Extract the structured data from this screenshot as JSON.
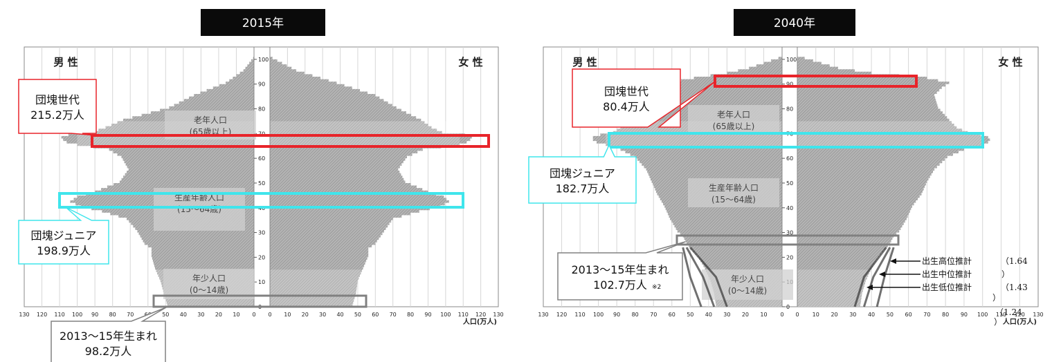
{
  "chart_data": [
    {
      "type": "population-pyramid",
      "title": "2015年",
      "left_label": "男 性",
      "right_label": "女 性",
      "x_ticks_left": [
        "130",
        "120",
        "110",
        "100",
        "90",
        "80",
        "70",
        "60",
        "50",
        "40",
        "30",
        "20",
        "10",
        "0"
      ],
      "x_ticks_right": [
        "0",
        "10",
        "20",
        "30",
        "40",
        "50",
        "60",
        "70",
        "80",
        "90",
        "100",
        "110",
        "120",
        "130"
      ],
      "age_ticks": [
        "0",
        "10",
        "20",
        "30",
        "40",
        "50",
        "60",
        "70",
        "80",
        "90",
        "100"
      ],
      "xlim": [
        0,
        130
      ],
      "ylim": [
        0,
        105
      ],
      "unit_label": "人口(万人)",
      "segments": [
        {
          "label": "老年人口",
          "sub": "(65歳以上)"
        },
        {
          "label": "生産年齢人口",
          "sub": "(15〜64歳)"
        },
        {
          "label": "年少人口",
          "sub": "(0〜14歳)"
        }
      ],
      "profile_ages": [
        0,
        5,
        10,
        15,
        20,
        23,
        25,
        30,
        35,
        38,
        40,
        42,
        44,
        46,
        50,
        55,
        60,
        63,
        65,
        66,
        67,
        68,
        69,
        70,
        72,
        75,
        80,
        85,
        90,
        95,
        100
      ],
      "male": [
        49,
        51,
        53,
        56,
        58,
        58,
        62,
        66,
        72,
        86,
        98,
        104,
        100,
        90,
        76,
        71,
        75,
        82,
        100,
        106,
        108,
        109,
        105,
        92,
        84,
        74,
        48,
        34,
        16,
        6,
        0.5
      ],
      "female": [
        47,
        49,
        50,
        53,
        56,
        56,
        60,
        65,
        70,
        85,
        97,
        102,
        99,
        90,
        77,
        73,
        78,
        87,
        108,
        112,
        114,
        115,
        111,
        98,
        92,
        86,
        72,
        60,
        38,
        15,
        1.5
      ],
      "callouts": [
        {
          "name": "団塊世代",
          "value": "215.2万人"
        },
        {
          "name": "団塊ジュニア",
          "value": "198.9万人"
        },
        {
          "name": "2013〜15年生まれ",
          "value": "98.2万人"
        }
      ]
    },
    {
      "type": "population-pyramid",
      "title": "2040年",
      "left_label": "男 性",
      "right_label": "女 性",
      "x_ticks_left": [
        "130",
        "120",
        "110",
        "100",
        "90",
        "80",
        "70",
        "60",
        "50",
        "40",
        "30",
        "20",
        "10",
        "0"
      ],
      "x_ticks_right": [
        "0",
        "10",
        "20",
        "30",
        "40",
        "50",
        "60",
        "70",
        "80",
        "90",
        "100",
        "110",
        "120",
        "130"
      ],
      "age_ticks": [
        "0",
        "10",
        "20",
        "30",
        "40",
        "50",
        "60",
        "70",
        "80",
        "90",
        "100"
      ],
      "xlim": [
        0,
        130
      ],
      "ylim": [
        0,
        105
      ],
      "unit_label": "人口(万人)",
      "segments": [
        {
          "label": "老年人口",
          "sub": "(65歳以上)"
        },
        {
          "label": "生産年齢人口",
          "sub": "(15〜64歳)"
        },
        {
          "label": "年少人口",
          "sub": "(0〜14歳)"
        }
      ],
      "profile_ages": [
        0,
        5,
        10,
        15,
        20,
        25,
        28,
        30,
        35,
        40,
        45,
        50,
        55,
        60,
        63,
        65,
        66,
        67,
        68,
        69,
        70,
        72,
        75,
        80,
        85,
        88,
        90,
        92,
        94,
        96,
        100
      ],
      "male": [
        36,
        37,
        39,
        42,
        46,
        52,
        54,
        57,
        61,
        64,
        68,
        71,
        74,
        80,
        88,
        96,
        101,
        103,
        103,
        99,
        92,
        88,
        82,
        78,
        72,
        66,
        62,
        48,
        30,
        18,
        2
      ],
      "female": [
        34,
        35,
        37,
        40,
        44,
        50,
        52,
        55,
        59,
        62,
        67,
        70,
        74,
        81,
        90,
        100,
        103,
        104,
        103,
        99,
        92,
        86,
        82,
        76,
        74,
        78,
        82,
        70,
        40,
        22,
        4
      ],
      "callouts": [
        {
          "name": "団塊世代",
          "value": "80.4万人"
        },
        {
          "name": "団塊ジュニア",
          "value": "182.7万人"
        },
        {
          "name": "2013〜15年生まれ",
          "value": "102.7万人",
          "note": "※2"
        }
      ],
      "projections": [
        {
          "label": "出生高位推計",
          "value": "（1.64",
          "tail": ""
        },
        {
          "label": "出生中位推計",
          "value": "",
          "tail": "）"
        },
        {
          "label": "出生低位推計",
          "value": "（1.43",
          "tail": "）"
        }
      ],
      "projection_extra": "（1.24",
      "projection_extra_tail": "）"
    }
  ]
}
